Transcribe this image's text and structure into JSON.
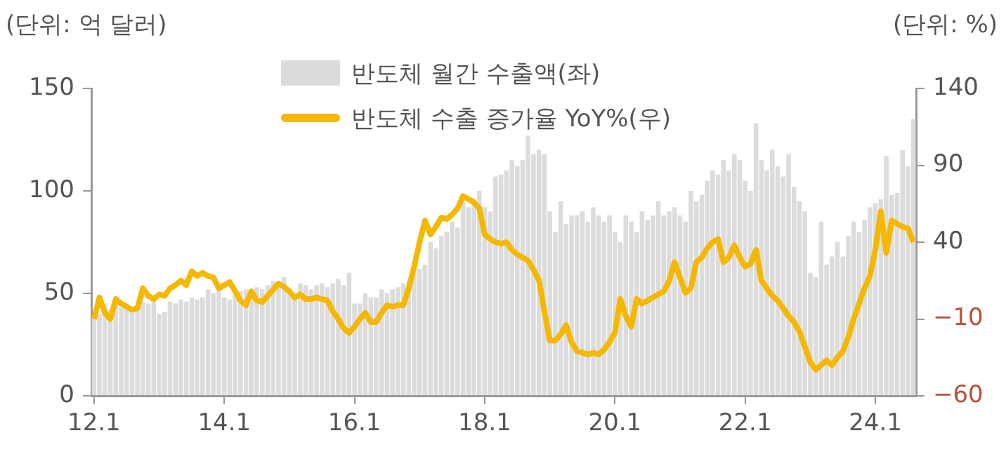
{
  "chart_data": {
    "type": "bar",
    "ylabel": "(단위: 억 달러)",
    "y2label": "(단위: %)",
    "categories": [
      "12.1",
      null,
      null,
      null,
      null,
      null,
      null,
      null,
      null,
      null,
      null,
      null,
      null,
      null,
      null,
      null,
      null,
      null,
      null,
      null,
      null,
      null,
      null,
      null,
      "14.1",
      null,
      null,
      null,
      null,
      null,
      null,
      null,
      null,
      null,
      null,
      null,
      null,
      null,
      null,
      null,
      null,
      null,
      null,
      null,
      null,
      null,
      null,
      null,
      "16.1",
      null,
      null,
      null,
      null,
      null,
      null,
      null,
      null,
      null,
      null,
      null,
      null,
      null,
      null,
      null,
      null,
      null,
      null,
      null,
      null,
      null,
      null,
      null,
      "18.1",
      null,
      null,
      null,
      null,
      null,
      null,
      null,
      null,
      null,
      null,
      null,
      null,
      null,
      null,
      null,
      null,
      null,
      null,
      null,
      null,
      null,
      null,
      null,
      "20.1",
      null,
      null,
      null,
      null,
      null,
      null,
      null,
      null,
      null,
      null,
      null,
      null,
      null,
      null,
      null,
      null,
      null,
      null,
      null,
      null,
      null,
      null,
      null,
      "22.1",
      null,
      null,
      null,
      null,
      null,
      null,
      null,
      null,
      null,
      null,
      null,
      null,
      null,
      null,
      null,
      null,
      null,
      null,
      null,
      null,
      null,
      null,
      null,
      "24.1",
      null,
      null,
      null,
      null,
      null,
      null,
      null
    ],
    "series": [
      {
        "name": "반도체 월간 수출액(좌)",
        "color": "#dcdcdc",
        "values": [
          38,
          40,
          45,
          42,
          44,
          43,
          45,
          42,
          43,
          46,
          45,
          47,
          40,
          41,
          46,
          45,
          47,
          46,
          48,
          47,
          48,
          52,
          50,
          52,
          48,
          47,
          52,
          51,
          52,
          50,
          53,
          52,
          54,
          56,
          53,
          58,
          50,
          49,
          55,
          54,
          52,
          54,
          55,
          53,
          55,
          57,
          54,
          60,
          45,
          45,
          50,
          48,
          48,
          52,
          50,
          52,
          53,
          55,
          56,
          60,
          62,
          64,
          75,
          72,
          78,
          80,
          85,
          82,
          95,
          92,
          95,
          100,
          92,
          90,
          107,
          108,
          110,
          115,
          112,
          115,
          127,
          118,
          120,
          118,
          90,
          80,
          95,
          84,
          88,
          88,
          90,
          85,
          92,
          88,
          85,
          88,
          80,
          75,
          88,
          85,
          80,
          90,
          86,
          88,
          95,
          88,
          90,
          92,
          88,
          85,
          100,
          95,
          98,
          105,
          110,
          108,
          115,
          110,
          118,
          115,
          105,
          100,
          133,
          115,
          110,
          120,
          112,
          107,
          118,
          102,
          95,
          90,
          60,
          58,
          85,
          64,
          68,
          75,
          68,
          78,
          85,
          80,
          86,
          92,
          94,
          96,
          117,
          98,
          99,
          120,
          112,
          135
        ]
      },
      {
        "name": "반도체 수출 증가율 YoY%(우)",
        "type": "line",
        "axis": "y2",
        "color": "#f5b800",
        "values": [
          -10,
          4,
          -6,
          -10,
          3,
          0,
          -2,
          -4,
          -3,
          10,
          5,
          3,
          6,
          5,
          10,
          12,
          15,
          12,
          21,
          18,
          20,
          18,
          17,
          10,
          12,
          14,
          8,
          2,
          -1,
          8,
          2,
          1,
          5,
          9,
          13,
          11,
          8,
          4,
          6,
          3,
          3,
          4,
          3,
          2,
          -5,
          -10,
          -16,
          -19,
          -15,
          -10,
          -6,
          -12,
          -12,
          -6,
          -1,
          -2,
          -1,
          -1,
          10,
          24,
          40,
          54,
          45,
          50,
          56,
          55,
          58,
          62,
          70,
          68,
          66,
          62,
          45,
          42,
          40,
          39,
          40,
          35,
          32,
          30,
          28,
          22,
          15,
          -5,
          -24,
          -24,
          -20,
          -14,
          -25,
          -31,
          -32,
          -33,
          -32,
          -33,
          -30,
          -25,
          -19,
          3,
          -8,
          -15,
          3,
          0,
          2,
          4,
          6,
          8,
          15,
          27,
          17,
          7,
          10,
          27,
          30,
          36,
          40,
          42,
          27,
          30,
          38,
          30,
          24,
          26,
          35,
          15,
          10,
          5,
          2,
          -3,
          -8,
          -12,
          -18,
          -28,
          -38,
          -43,
          -40,
          -37,
          -40,
          -35,
          -31,
          -22,
          -10,
          0,
          10,
          18,
          35,
          60,
          33,
          54,
          52,
          50,
          49,
          40
        ]
      }
    ],
    "ylim": [
      0,
      150
    ],
    "yticks": [
      0,
      50,
      100,
      150
    ],
    "y2lim": [
      -60,
      140
    ],
    "y2ticks": [
      -60,
      -10,
      40,
      90,
      140
    ],
    "grid": false,
    "legend": "top",
    "line_style": "solid",
    "marker": "none"
  }
}
